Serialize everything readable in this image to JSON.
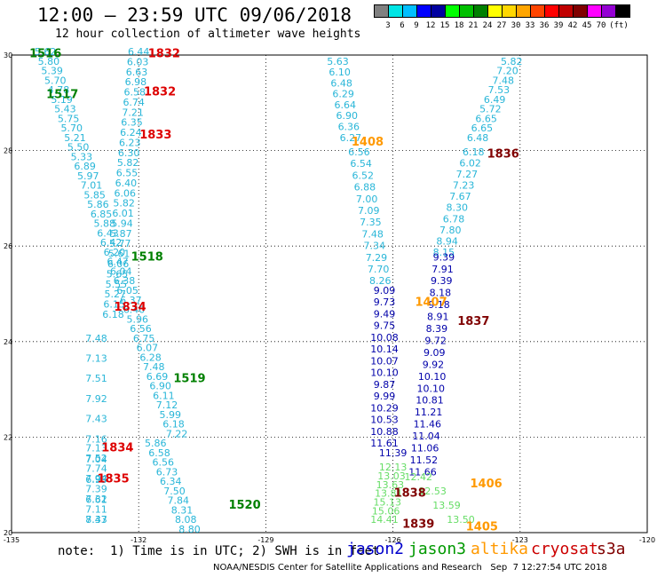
{
  "title": "12:00 – 23:59 UTC 09/06/2018",
  "subtitle": "12 hour collection of altimeter wave heights",
  "colorbar": {
    "colors": [
      "#808080",
      "#00e5e5",
      "#00bfff",
      "#0000ff",
      "#0000a0",
      "#00ff00",
      "#00c000",
      "#008000",
      "#ffff00",
      "#ffd700",
      "#ffa500",
      "#ff4500",
      "#ff0000",
      "#c00000",
      "#800000",
      "#ff00ff",
      "#9400d3",
      "#000000"
    ],
    "labels": [
      "3",
      "6",
      "9",
      "12",
      "15",
      "18",
      "21",
      "24",
      "27",
      "30",
      "33",
      "36",
      "39",
      "42",
      "45",
      "70",
      "(ft)"
    ]
  },
  "axes": {
    "x_ticks": [
      "-135",
      "-132",
      "-129",
      "-126",
      "-123",
      "-120"
    ],
    "y_ticks": [
      "30",
      "28",
      "26",
      "24",
      "22",
      "20"
    ]
  },
  "note": "note:  1) Time is in UTC; 2) SWH is in feet",
  "credit": "NOAA/NESDIS Center for Satellite Applications and Research   Sep  7 12:27:54 UTC 2018",
  "satellites": [
    {
      "name": "jason2",
      "color": "#0000cc"
    },
    {
      "name": "jason3",
      "color": "#009900"
    },
    {
      "name": "altika",
      "color": "#ff9900"
    },
    {
      "name": "cryosat",
      "color": "#cc0000"
    },
    {
      "name": "s3a",
      "color": "#800000"
    }
  ],
  "tracks": [
    {
      "color": "#29b6d8",
      "lon0": -134.2,
      "lat0": 30.0,
      "lon1": -131.1,
      "lat1": 22.0,
      "values": [
        "5.62",
        "5.80",
        "5.39",
        "5.70",
        "4.78",
        "5.19",
        "5.43",
        "5.75",
        "5.70",
        "5.21",
        "5.50",
        "5.33",
        "6.89",
        "5.97",
        "7.01",
        "5.85",
        "5.86",
        "6.85",
        "5.88",
        "6.43",
        "6.42",
        "6.20",
        "6.47",
        "6.04",
        "6.38",
        "6.05",
        "6.37",
        "6.40",
        "5.96",
        "6.56",
        "6.75",
        "6.07",
        "6.28",
        "7.48",
        "6.69",
        "6.90",
        "6.11",
        "7.12",
        "5.99",
        "6.18",
        "7.22"
      ]
    },
    {
      "color": "#29b6d8",
      "lon0": -133.0,
      "lat0": 24.0,
      "lon1": -133.0,
      "lat1": 20.2,
      "values": [
        "7.48",
        "7.13",
        "7.51",
        "7.92",
        "7.43",
        "7.16",
        "7.04",
        "6.93",
        "6.61",
        "7.47"
      ]
    },
    {
      "color": "#29b6d8",
      "lon0": -133.0,
      "lat0": 21.7,
      "lon1": -133.0,
      "lat1": 20.2,
      "values": [
        "7.13",
        "7.52",
        "7.74",
        "7.94",
        "7.39",
        "7.32",
        "7.11",
        "8.33"
      ]
    },
    {
      "color": "#29b6d8",
      "lon0": -132.0,
      "lat0": 30.0,
      "lon1": -132.6,
      "lat1": 24.5,
      "values": [
        "6.44",
        "6.03",
        "6.63",
        "6.98",
        "6.58",
        "6.74",
        "7.21",
        "6.35",
        "6.24",
        "6.23",
        "6.30",
        "5.82",
        "6.55",
        "6.40",
        "6.06",
        "5.82",
        "6.01",
        "5.94",
        "5.87",
        "5.77",
        "5.61",
        "6.06",
        "5.65",
        "5.55",
        "5.27",
        "6.15",
        "6.18"
      ]
    },
    {
      "color": "#29b6d8",
      "lon0": -131.6,
      "lat0": 21.8,
      "lon1": -130.8,
      "lat1": 20.0,
      "values": [
        "5.86",
        "6.58",
        "6.56",
        "6.73",
        "6.34",
        "7.50",
        "7.84",
        "8.31",
        "8.08",
        "8.80"
      ]
    },
    {
      "color": "#29b6d8",
      "lon0": -127.3,
      "lat0": 29.8,
      "lon1": -127.0,
      "lat1": 28.2,
      "values": [
        "5.63",
        "6.10",
        "6.48",
        "6.29",
        "6.64",
        "6.90",
        "6.36",
        "6.27"
      ]
    },
    {
      "color": "#29b6d8",
      "lon0": -126.8,
      "lat0": 27.9,
      "lon1": -126.3,
      "lat1": 25.2,
      "values": [
        "6.56",
        "6.54",
        "6.52",
        "6.88",
        "7.00",
        "7.09",
        "7.35",
        "7.48",
        "7.34",
        "7.29",
        "7.70",
        "8.26"
      ]
    },
    {
      "color": "#29b6d8",
      "lon0": -123.2,
      "lat0": 29.8,
      "lon1": -124.0,
      "lat1": 28.2,
      "values": [
        "5.82",
        "7.20",
        "7.48",
        "7.53",
        "6.49",
        "5.72",
        "6.65",
        "6.65",
        "6.48"
      ]
    },
    {
      "color": "#29b6d8",
      "lon0": -124.1,
      "lat0": 27.9,
      "lon1": -124.8,
      "lat1": 25.8,
      "values": [
        "6.18",
        "6.02",
        "7.27",
        "7.23",
        "7.67",
        "8.30",
        "6.78",
        "7.80",
        "8.94",
        "8.15"
      ]
    },
    {
      "color": "#0000aa",
      "lon0": -126.2,
      "lat0": 25.0,
      "lon1": -126.2,
      "lat1": 21.8,
      "values": [
        "9.09",
        "9.73",
        "9.49",
        "9.75",
        "10.08",
        "10.14",
        "10.07",
        "10.10",
        "9.87",
        "9.99",
        "10.29",
        "10.53",
        "10.88",
        "11.61"
      ]
    },
    {
      "color": "#0000aa",
      "lon0": -124.8,
      "lat0": 25.7,
      "lon1": -125.3,
      "lat1": 21.2,
      "values": [
        "9.39",
        "7.91",
        "9.39",
        "8.18",
        "9.18",
        "8.91",
        "8.39",
        "9.72",
        "9.09",
        "9.92",
        "10.10",
        "10.10",
        "10.81",
        "11.21",
        "11.46",
        "11.04",
        "11.06",
        "11.52",
        "11.66"
      ]
    },
    {
      "color": "#0000aa",
      "lon0": -126.0,
      "lat0": 21.6,
      "lon1": -126.0,
      "lat1": 21.6,
      "values": [
        "11.39"
      ]
    },
    {
      "color": "#66dd66",
      "lon0": -126.0,
      "lat0": 21.3,
      "lon1": -126.2,
      "lat1": 20.2,
      "values": [
        "12.13",
        "13.03",
        "13.63",
        "13.81",
        "15.13",
        "15.06",
        "14.41"
      ]
    },
    {
      "color": "#66dd66",
      "lon0": -125.4,
      "lat0": 21.1,
      "lon1": -124.4,
      "lat1": 20.2,
      "values": [
        "12.42",
        "12.53",
        "13.59",
        "13.50"
      ]
    }
  ],
  "labels": [
    {
      "text": "1516",
      "color": "#008000",
      "lon": -134.2,
      "lat": 29.95
    },
    {
      "text": "1517",
      "color": "#008000",
      "lon": -133.8,
      "lat": 29.1
    },
    {
      "text": "1518",
      "color": "#008000",
      "lon": -131.8,
      "lat": 25.7
    },
    {
      "text": "1519",
      "color": "#008000",
      "lon": -130.8,
      "lat": 23.15
    },
    {
      "text": "1520",
      "color": "#008000",
      "lon": -129.5,
      "lat": 20.5
    },
    {
      "text": "1832",
      "color": "#dd0000",
      "lon": -131.4,
      "lat": 29.95
    },
    {
      "text": "1832",
      "color": "#dd0000",
      "lon": -131.5,
      "lat": 29.15
    },
    {
      "text": "1833",
      "color": "#dd0000",
      "lon": -131.6,
      "lat": 28.25
    },
    {
      "text": "1834",
      "color": "#dd0000",
      "lon": -132.2,
      "lat": 24.65
    },
    {
      "text": "1834",
      "color": "#dd0000",
      "lon": -132.5,
      "lat": 21.7
    },
    {
      "text": "1835",
      "color": "#dd0000",
      "lon": -132.6,
      "lat": 21.05
    },
    {
      "text": "1408",
      "color": "#ff9900",
      "lon": -126.6,
      "lat": 28.1
    },
    {
      "text": "1407",
      "color": "#ff9900",
      "lon": -125.1,
      "lat": 24.75
    },
    {
      "text": "1406",
      "color": "#ff9900",
      "lon": -123.8,
      "lat": 20.95
    },
    {
      "text": "1405",
      "color": "#ff9900",
      "lon": -123.9,
      "lat": 20.05
    },
    {
      "text": "1836",
      "color": "#800000",
      "lon": -123.4,
      "lat": 27.85
    },
    {
      "text": "1837",
      "color": "#800000",
      "lon": -124.1,
      "lat": 24.35
    },
    {
      "text": "1838",
      "color": "#800000",
      "lon": -125.6,
      "lat": 20.75
    },
    {
      "text": "1839",
      "color": "#800000",
      "lon": -125.4,
      "lat": 20.1
    }
  ]
}
